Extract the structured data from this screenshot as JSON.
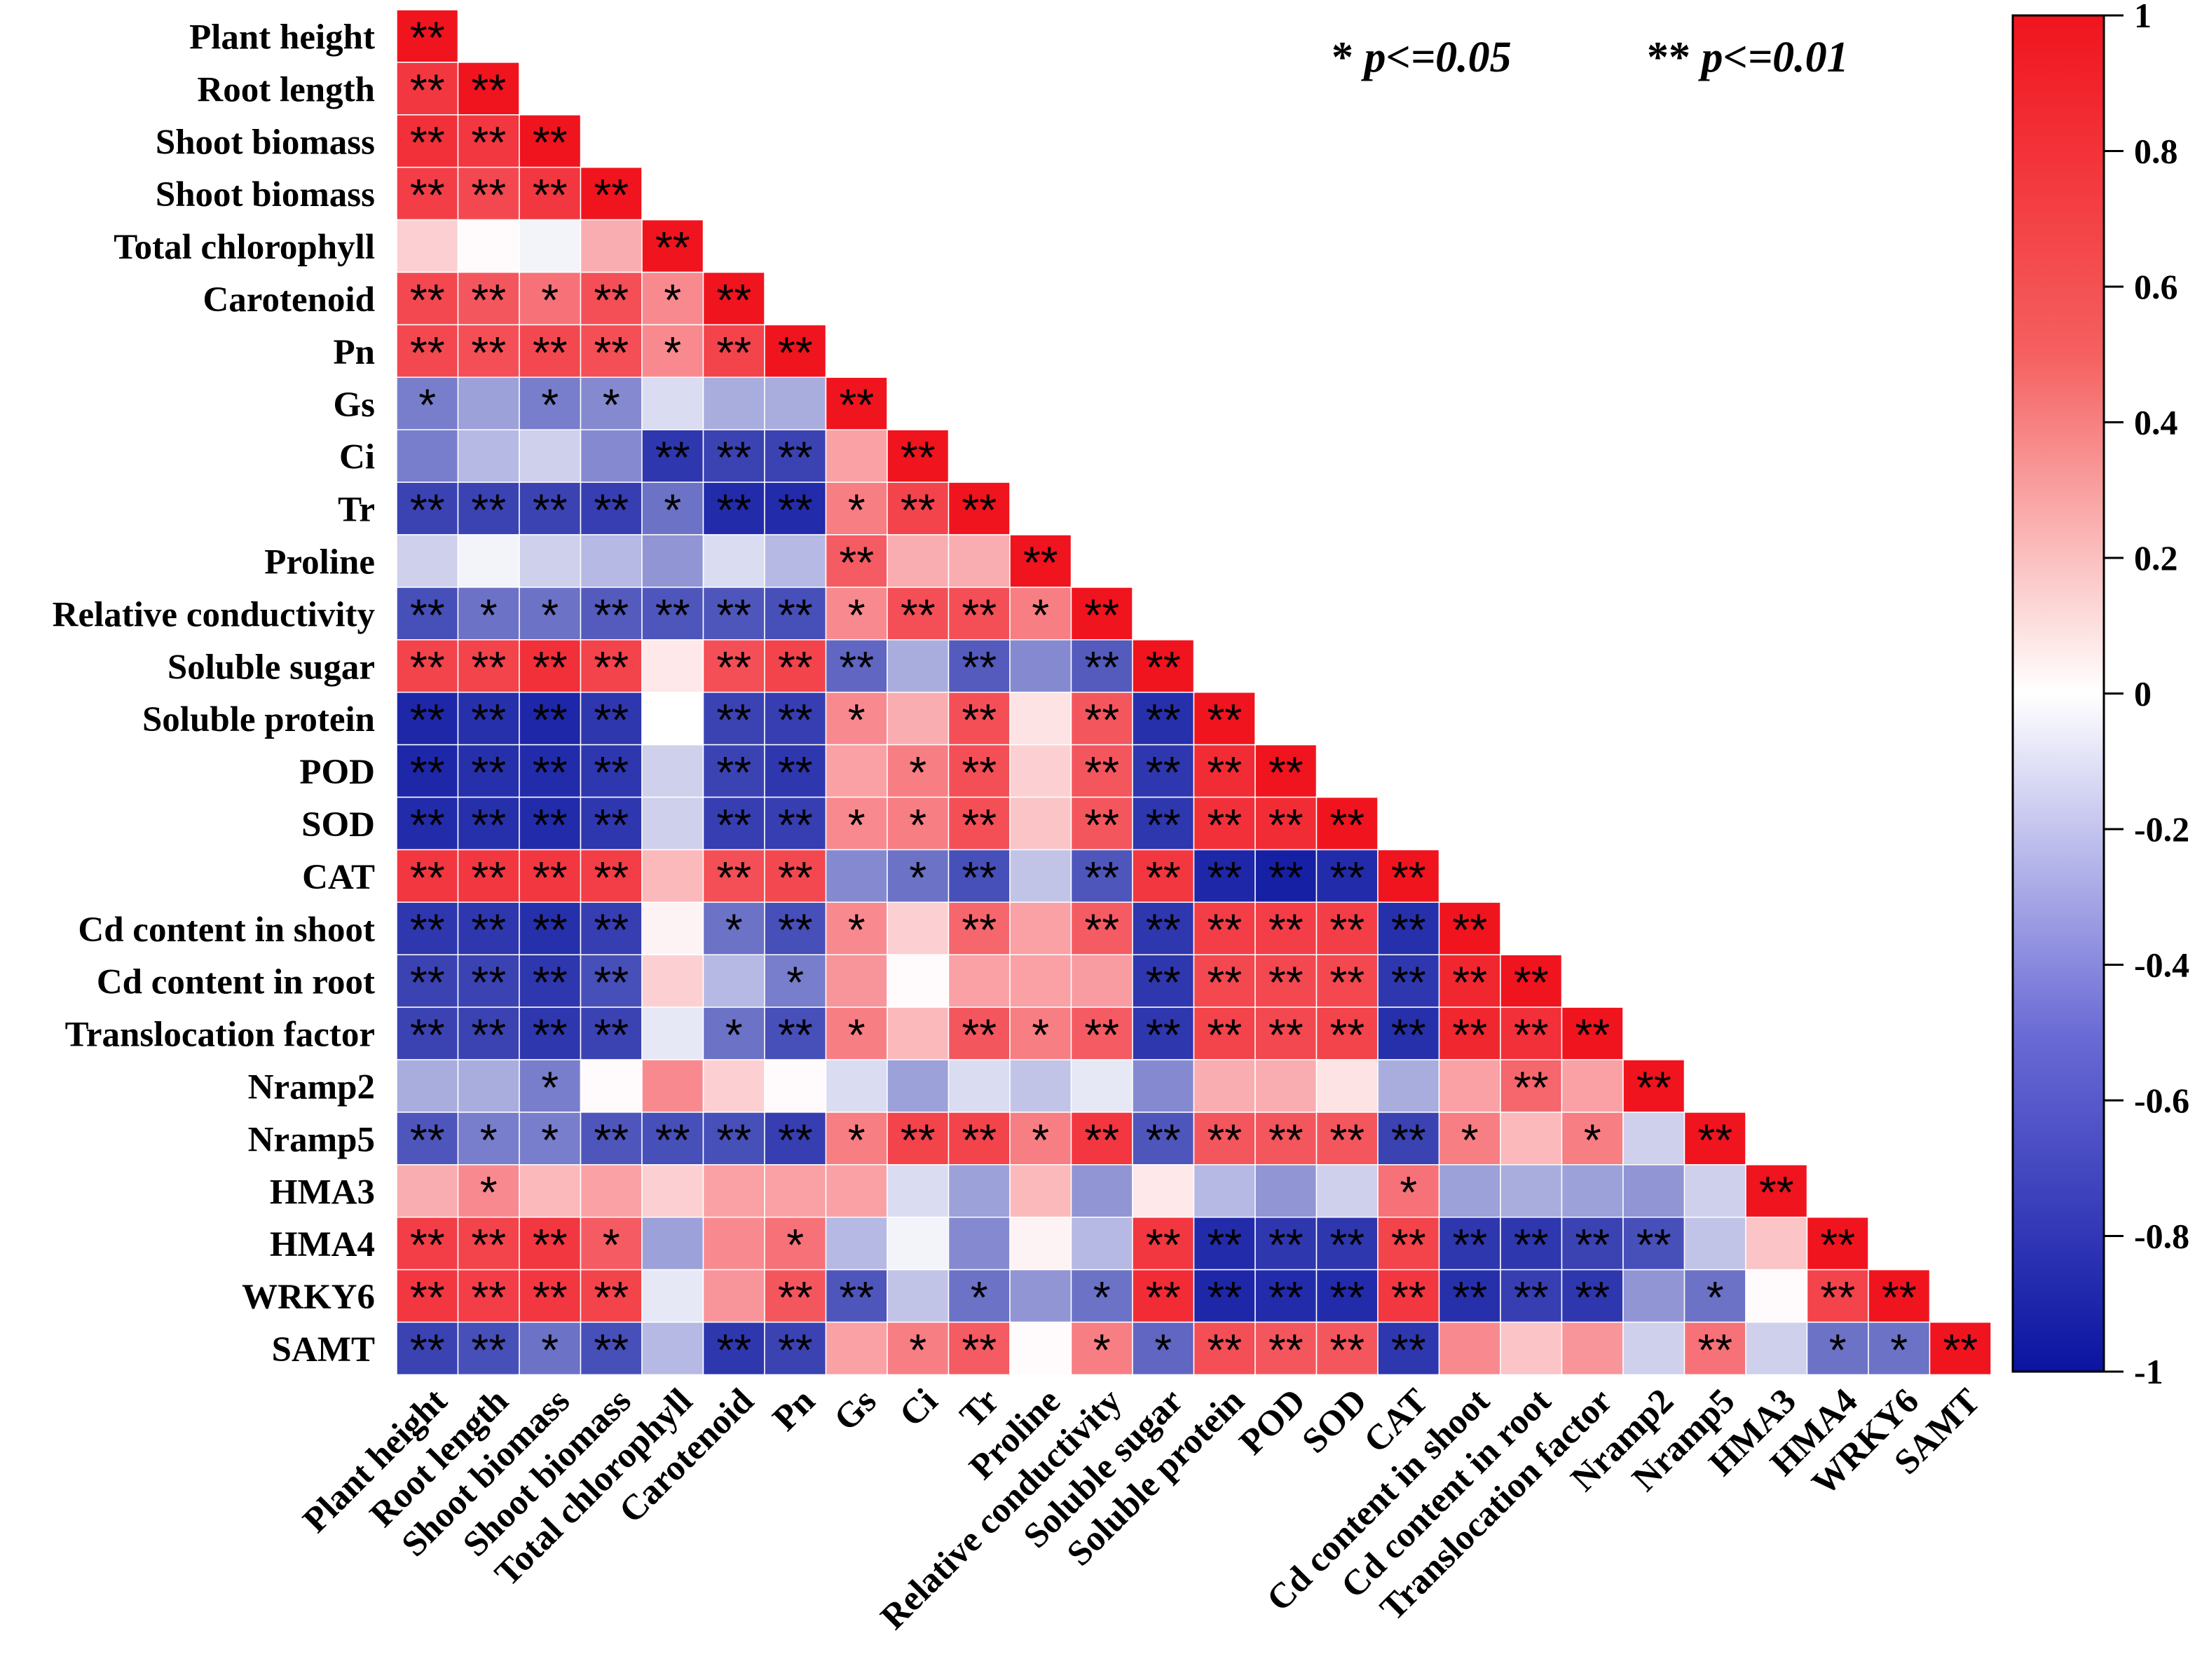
{
  "chart_data": {
    "type": "heatmap",
    "title": "",
    "variables": [
      "Plant height",
      "Root length",
      "Shoot biomass",
      "Shoot biomass",
      "Total chlorophyll",
      "Carotenoid",
      "Pn",
      "Gs",
      "Ci",
      "Tr",
      "Proline",
      "Relative conductivity",
      "Soluble sugar",
      "Soluble protein",
      "POD",
      "SOD",
      "CAT",
      "Cd content in shoot",
      "Cd content in root",
      "Translocation factor",
      "Nramp2",
      "Nramp5",
      "HMA3",
      "HMA4",
      "WRKY6",
      "SAMT"
    ],
    "matrix": [
      [
        1
      ],
      [
        0.85,
        1
      ],
      [
        0.88,
        0.85,
        1
      ],
      [
        0.82,
        0.78,
        0.85,
        1
      ],
      [
        0.2,
        0.02,
        -0.05,
        0.35,
        1
      ],
      [
        0.78,
        0.72,
        0.6,
        0.75,
        0.5,
        1
      ],
      [
        0.78,
        0.75,
        0.78,
        0.75,
        0.5,
        0.8,
        1
      ],
      [
        -0.55,
        -0.4,
        -0.55,
        -0.5,
        -0.15,
        -0.35,
        -0.35,
        1
      ],
      [
        -0.55,
        -0.3,
        -0.2,
        -0.5,
        -0.85,
        -0.8,
        -0.8,
        0.4,
        1
      ],
      [
        -0.8,
        -0.8,
        -0.8,
        -0.82,
        -0.6,
        -0.9,
        -0.9,
        0.55,
        0.8,
        1
      ],
      [
        -0.2,
        -0.05,
        -0.2,
        -0.3,
        -0.45,
        -0.15,
        -0.3,
        0.7,
        0.35,
        0.35,
        1
      ],
      [
        -0.75,
        -0.6,
        -0.6,
        -0.7,
        -0.72,
        -0.72,
        -0.75,
        0.5,
        0.75,
        0.75,
        0.55,
        1
      ],
      [
        0.8,
        0.8,
        0.88,
        0.8,
        0.1,
        0.75,
        0.8,
        -0.65,
        -0.35,
        -0.7,
        -0.5,
        -0.7,
        1
      ],
      [
        -0.92,
        -0.88,
        -0.92,
        -0.85,
        0.0,
        -0.8,
        -0.82,
        0.5,
        0.35,
        0.75,
        0.12,
        0.72,
        -0.88,
        1
      ],
      [
        -0.92,
        -0.88,
        -0.9,
        -0.85,
        -0.2,
        -0.8,
        -0.85,
        0.4,
        0.55,
        0.75,
        0.2,
        0.72,
        -0.85,
        0.9,
        1
      ],
      [
        -0.9,
        -0.88,
        -0.9,
        -0.85,
        -0.2,
        -0.82,
        -0.82,
        0.5,
        0.55,
        0.75,
        0.25,
        0.72,
        -0.85,
        0.88,
        0.9,
        1
      ],
      [
        0.85,
        0.85,
        0.85,
        0.82,
        0.3,
        0.75,
        0.78,
        -0.5,
        -0.6,
        -0.75,
        -0.25,
        -0.72,
        0.85,
        -0.92,
        -0.95,
        -0.9,
        1
      ],
      [
        -0.85,
        -0.85,
        -0.88,
        -0.82,
        0.05,
        -0.6,
        -0.75,
        0.5,
        0.2,
        0.65,
        0.4,
        0.7,
        -0.85,
        0.82,
        0.82,
        0.82,
        -0.88,
        1
      ],
      [
        -0.8,
        -0.8,
        -0.85,
        -0.75,
        0.2,
        -0.3,
        -0.55,
        0.45,
        0.02,
        0.4,
        0.4,
        0.42,
        -0.85,
        0.78,
        0.78,
        0.78,
        -0.85,
        0.92,
        1
      ],
      [
        -0.8,
        -0.8,
        -0.85,
        -0.8,
        -0.1,
        -0.6,
        -0.75,
        0.55,
        0.3,
        0.72,
        0.55,
        0.7,
        -0.85,
        0.8,
        0.78,
        0.8,
        -0.88,
        0.92,
        0.88,
        1
      ],
      [
        -0.35,
        -0.35,
        -0.55,
        0.02,
        0.5,
        0.2,
        0.02,
        -0.15,
        -0.4,
        -0.15,
        -0.25,
        -0.1,
        -0.5,
        0.35,
        0.35,
        0.12,
        -0.35,
        0.4,
        0.65,
        0.4,
        1
      ],
      [
        -0.72,
        -0.55,
        -0.55,
        -0.72,
        -0.75,
        -0.75,
        -0.82,
        0.55,
        0.8,
        0.8,
        0.55,
        0.85,
        -0.72,
        0.72,
        0.72,
        0.72,
        -0.8,
        0.55,
        0.3,
        0.55,
        -0.2,
        1
      ],
      [
        0.35,
        0.5,
        0.3,
        0.4,
        0.2,
        0.4,
        0.4,
        0.4,
        -0.15,
        -0.4,
        0.3,
        -0.45,
        0.1,
        -0.3,
        -0.45,
        -0.2,
        0.6,
        -0.4,
        -0.35,
        -0.4,
        -0.45,
        -0.2,
        1
      ],
      [
        0.82,
        0.8,
        0.85,
        0.7,
        -0.4,
        0.5,
        0.6,
        -0.3,
        -0.05,
        -0.5,
        0.05,
        -0.3,
        0.85,
        -0.9,
        -0.85,
        -0.85,
        0.8,
        -0.85,
        -0.85,
        -0.8,
        -0.75,
        -0.25,
        0.25,
        1
      ],
      [
        0.85,
        0.82,
        0.85,
        0.8,
        -0.1,
        0.45,
        0.72,
        -0.72,
        -0.25,
        -0.6,
        -0.45,
        -0.6,
        0.9,
        -0.92,
        -0.9,
        -0.9,
        0.85,
        -0.88,
        -0.82,
        -0.85,
        -0.45,
        -0.6,
        0.02,
        0.8,
        1
      ],
      [
        -0.8,
        -0.75,
        -0.6,
        -0.75,
        -0.3,
        -0.85,
        -0.8,
        0.4,
        0.55,
        0.7,
        0.02,
        0.55,
        -0.65,
        0.75,
        0.72,
        0.72,
        -0.85,
        0.5,
        0.25,
        0.45,
        -0.2,
        0.6,
        -0.2,
        -0.6,
        -0.6,
        1
      ]
    ],
    "significance": [
      [
        "**"
      ],
      [
        "**",
        "**"
      ],
      [
        "**",
        "**",
        "**"
      ],
      [
        "**",
        "**",
        "**",
        "**"
      ],
      [
        "",
        "",
        "",
        "",
        "**"
      ],
      [
        "**",
        "**",
        "*",
        "**",
        "*",
        "**"
      ],
      [
        "**",
        "**",
        "**",
        "**",
        "*",
        "**",
        "**"
      ],
      [
        "*",
        "",
        "*",
        "*",
        "",
        "",
        "",
        "**"
      ],
      [
        "",
        "",
        "",
        "",
        "**",
        "**",
        "**",
        "",
        "**"
      ],
      [
        "**",
        "**",
        "**",
        "**",
        "*",
        "**",
        "**",
        "*",
        "**",
        "**"
      ],
      [
        "",
        "",
        "",
        "",
        "",
        "",
        "",
        "**",
        "",
        "",
        "**"
      ],
      [
        "**",
        "*",
        "*",
        "**",
        "**",
        "**",
        "**",
        "*",
        "**",
        "**",
        "*",
        "**"
      ],
      [
        "**",
        "**",
        "**",
        "**",
        "",
        "**",
        "**",
        "**",
        "",
        "**",
        "",
        "**",
        "**"
      ],
      [
        "**",
        "**",
        "**",
        "**",
        "",
        "**",
        "**",
        "*",
        "",
        "**",
        "",
        "**",
        "**",
        "**"
      ],
      [
        "**",
        "**",
        "**",
        "**",
        "",
        "**",
        "**",
        "",
        "*",
        "**",
        "",
        "**",
        "**",
        "**",
        "**"
      ],
      [
        "**",
        "**",
        "**",
        "**",
        "",
        "**",
        "**",
        "*",
        "*",
        "**",
        "",
        "**",
        "**",
        "**",
        "**",
        "**"
      ],
      [
        "**",
        "**",
        "**",
        "**",
        "",
        "**",
        "**",
        "",
        "*",
        "**",
        "",
        "**",
        "**",
        "**",
        "**",
        "**",
        "**"
      ],
      [
        "**",
        "**",
        "**",
        "**",
        "",
        "*",
        "**",
        "*",
        "",
        "**",
        "",
        "**",
        "**",
        "**",
        "**",
        "**",
        "**",
        "**"
      ],
      [
        "**",
        "**",
        "**",
        "**",
        "",
        "",
        "*",
        "",
        "",
        "",
        "",
        "",
        "**",
        "**",
        "**",
        "**",
        "**",
        "**",
        "**"
      ],
      [
        "**",
        "**",
        "**",
        "**",
        "",
        "*",
        "**",
        "*",
        "",
        "**",
        "*",
        "**",
        "**",
        "**",
        "**",
        "**",
        "**",
        "**",
        "**",
        "**"
      ],
      [
        "",
        "",
        "*",
        "",
        "",
        "",
        "",
        "",
        "",
        "",
        "",
        "",
        "",
        "",
        "",
        "",
        "",
        "",
        "**",
        "",
        "**"
      ],
      [
        "**",
        "*",
        "*",
        "**",
        "**",
        "**",
        "**",
        "*",
        "**",
        "**",
        "*",
        "**",
        "**",
        "**",
        "**",
        "**",
        "**",
        "*",
        "",
        "*",
        "",
        "**"
      ],
      [
        "",
        "*",
        "",
        "",
        "",
        "",
        "",
        "",
        "",
        "",
        "",
        "",
        "",
        "",
        "",
        "",
        "*",
        "",
        "",
        "",
        "",
        "",
        "**"
      ],
      [
        "**",
        "**",
        "**",
        "*",
        "",
        "",
        "*",
        "",
        "",
        "",
        "",
        "",
        "**",
        "**",
        "**",
        "**",
        "**",
        "**",
        "**",
        "**",
        "**",
        "",
        "",
        "**"
      ],
      [
        "**",
        "**",
        "**",
        "**",
        "",
        "",
        "**",
        "**",
        "",
        "*",
        "",
        "*",
        "**",
        "**",
        "**",
        "**",
        "**",
        "**",
        "**",
        "**",
        "",
        "*",
        "",
        "**",
        "**"
      ],
      [
        "**",
        "**",
        "*",
        "**",
        "",
        "**",
        "**",
        "",
        "*",
        "**",
        "",
        "*",
        "*",
        "**",
        "**",
        "**",
        "**",
        "",
        "",
        "",
        "",
        "**",
        "",
        "*",
        "*",
        "**"
      ]
    ],
    "colorbar": {
      "range": [
        -1,
        1
      ],
      "ticks": [
        1,
        0.8,
        0.6,
        0.4,
        0.2,
        0,
        -0.2,
        -0.4,
        -0.6,
        -0.8,
        -1
      ],
      "tick_labels": [
        "1",
        "0.8",
        "0.6",
        "0.4",
        "0.2",
        "0",
        "-0.2",
        "-0.4",
        "-0.6",
        "-0.8",
        "-1"
      ],
      "colors": {
        "low": "#0a14a0",
        "mid": "#ffffff",
        "high": "#f0141e"
      }
    },
    "legend": {
      "single": {
        "stars": "*",
        "label": " p<=0.05"
      },
      "double": {
        "stars": "**",
        "label": " p<=0.01"
      }
    }
  }
}
